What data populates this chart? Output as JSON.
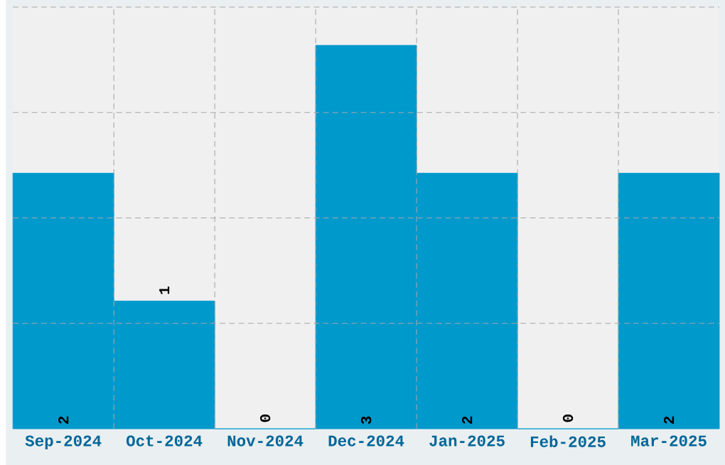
{
  "chart_data": {
    "type": "bar",
    "categories": [
      "Sep-2024",
      "Oct-2024",
      "Nov-2024",
      "Dec-2024",
      "Jan-2025",
      "Feb-2025",
      "Mar-2025"
    ],
    "values": [
      2,
      1,
      0,
      3,
      2,
      0,
      2
    ],
    "color": "#0099cc",
    "ylim": [
      0,
      3.3
    ],
    "yticks": [
      {
        "value": 0.825,
        "label": null
      },
      {
        "value": 1.65,
        "label": null
      },
      {
        "value": 2.475,
        "label": null
      },
      {
        "value": 3.3,
        "label": null
      }
    ],
    "tick_labels": "x",
    "grid": true,
    "data_labels": true
  }
}
